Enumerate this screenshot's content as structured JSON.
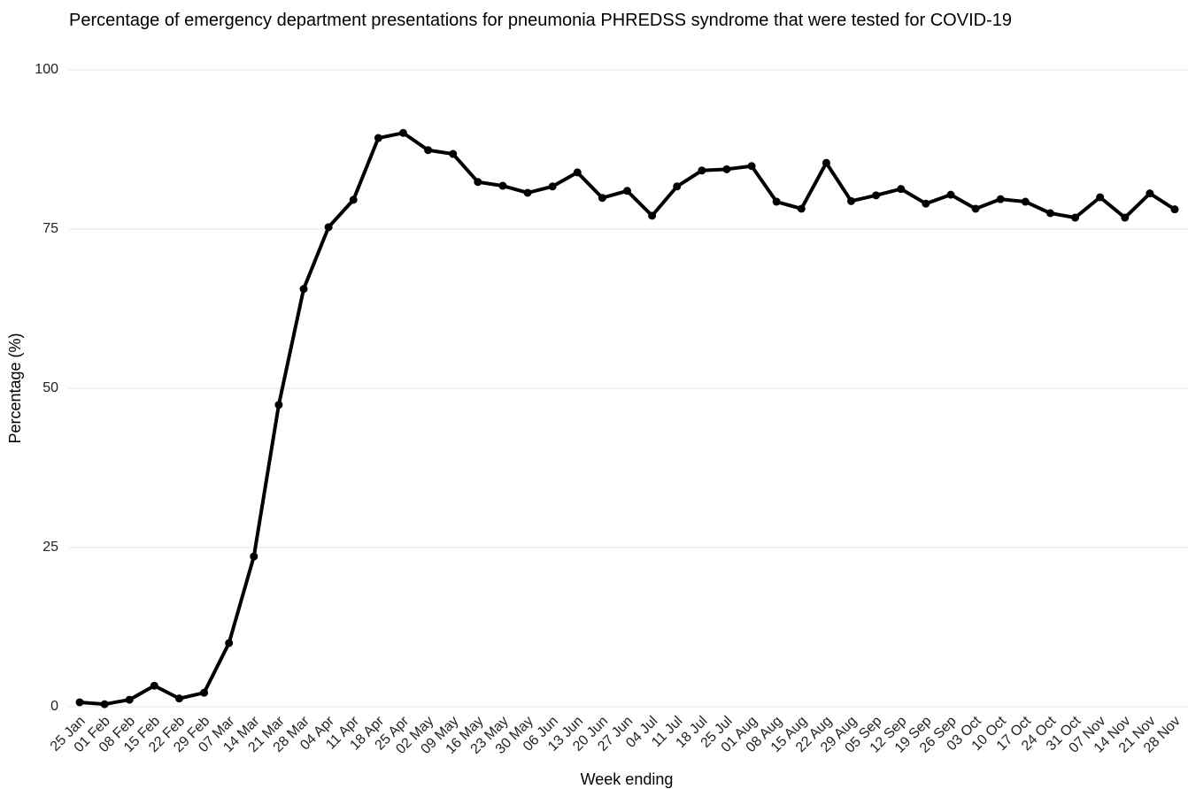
{
  "chart_data": {
    "type": "line",
    "title": "Percentage of emergency department presentations for pneumonia PHREDSS syndrome that were tested for COVID-19",
    "x_label": "Week ending",
    "y_label": "Percentage (%)",
    "categories": [
      "25 Jan",
      "01 Feb",
      "08 Feb",
      "15 Feb",
      "22 Feb",
      "29 Feb",
      "07 Mar",
      "14 Mar",
      "21 Mar",
      "28 Mar",
      "04 Apr",
      "11 Apr",
      "18 Apr",
      "25 Apr",
      "02 May",
      "09 May",
      "16 May",
      "23 May",
      "30 May",
      "06 Jun",
      "13 Jun",
      "20 Jun",
      "27 Jun",
      "04 Jul",
      "11 Jul",
      "18 Jul",
      "25 Jul",
      "01 Aug",
      "08 Aug",
      "15 Aug",
      "22 Aug",
      "29 Aug",
      "05 Sep",
      "12 Sep",
      "19 Sep",
      "26 Sep",
      "03 Oct",
      "10 Oct",
      "17 Oct",
      "24 Oct",
      "31 Oct",
      "07 Nov",
      "14 Nov",
      "21 Nov",
      "28 Nov"
    ],
    "series": [
      {
        "name": "Percentage",
        "color": "#000000",
        "values": [
          0.7,
          0.4,
          1.1,
          3.3,
          1.3,
          2.2,
          10.0,
          23.6,
          47.4,
          65.6,
          75.3,
          79.6,
          89.3,
          90.1,
          87.4,
          86.8,
          82.4,
          81.8,
          80.7,
          81.7,
          83.9,
          79.9,
          81.0,
          77.1,
          81.7,
          84.2,
          84.4,
          84.9,
          79.3,
          78.2,
          85.4,
          79.4,
          80.3,
          81.3,
          79.0,
          80.4,
          78.2,
          79.7,
          79.3,
          77.5,
          76.8,
          80.0,
          76.8,
          80.6,
          78.1
        ]
      }
    ],
    "ylim": [
      0,
      100
    ],
    "yticks": [
      0,
      25,
      50,
      75,
      100
    ],
    "grid": true
  }
}
